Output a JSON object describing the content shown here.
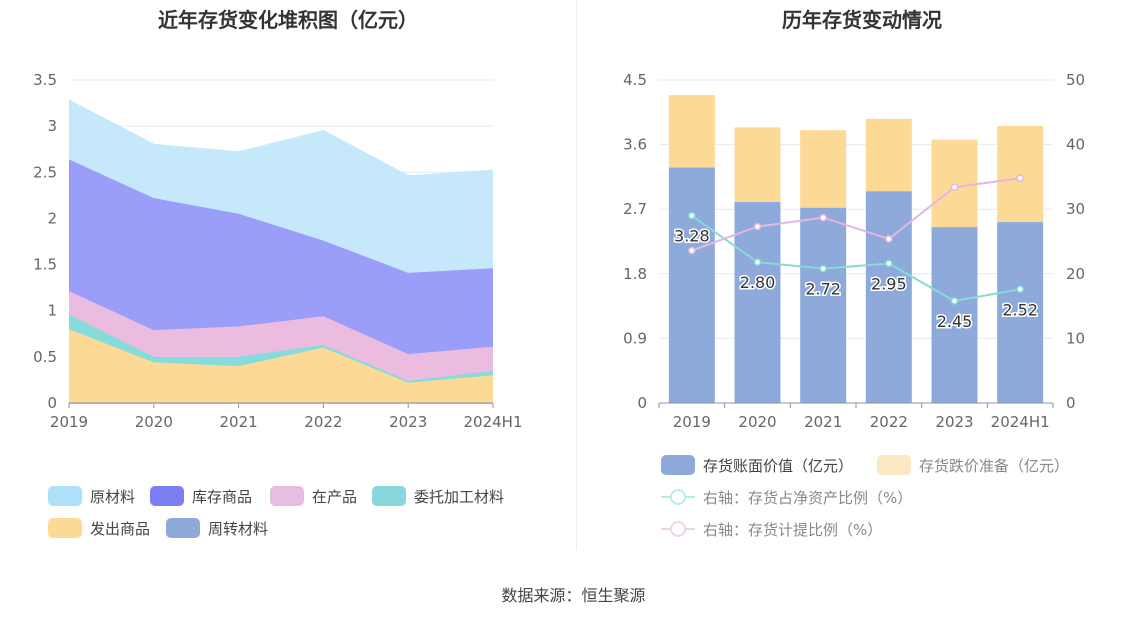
{
  "footer": {
    "source": "数据来源：恒生聚源"
  },
  "legend_left": [
    "原材料",
    "库存商品",
    "在产品",
    "委托加工材料",
    "发出商品",
    "周转材料"
  ],
  "legend_right": {
    "bar1": "存货账面价值（亿元）",
    "bar2": "存货跌价准备（亿元）",
    "line1": "右轴：存货占净资产比例（%）",
    "line2": "右轴：存货计提比例（%）"
  },
  "chart_data": [
    {
      "type": "area",
      "title": "近年存货变化堆积图（亿元）",
      "stacked": true,
      "categories": [
        "2019",
        "2020",
        "2021",
        "2022",
        "2023",
        "2024H1"
      ],
      "y_ticks": [
        "0",
        "0.5",
        "1",
        "1.5",
        "2",
        "2.5",
        "3",
        "3.5"
      ],
      "ylim": [
        0,
        3.5
      ],
      "series": [
        {
          "name": "周转材料",
          "color": "#8eaadb",
          "values": [
            0,
            0,
            0,
            0,
            0,
            0
          ]
        },
        {
          "name": "发出商品",
          "color": "#fdd996",
          "values": [
            0.8,
            0.44,
            0.4,
            0.6,
            0.22,
            0.3
          ]
        },
        {
          "name": "委托加工材料",
          "color": "#86dbdb",
          "values": [
            0.16,
            0.06,
            0.1,
            0.03,
            0.02,
            0.05
          ]
        },
        {
          "name": "在产品",
          "color": "#ebbce0",
          "values": [
            0.25,
            0.29,
            0.33,
            0.31,
            0.29,
            0.26
          ]
        },
        {
          "name": "库存商品",
          "color": "#9b9ef8",
          "values": [
            1.43,
            1.43,
            1.22,
            0.82,
            0.88,
            0.85
          ]
        },
        {
          "name": "原材料",
          "color": "#c5e9fb",
          "values": [
            0.64,
            0.58,
            0.67,
            1.19,
            1.05,
            1.06
          ]
        }
      ]
    },
    {
      "type": "bar",
      "title": "历年存货变动情况",
      "stacked": true,
      "categories": [
        "2019",
        "2020",
        "2021",
        "2022",
        "2023",
        "2024H1"
      ],
      "y_left_ticks": [
        "0",
        "0.9",
        "1.8",
        "2.7",
        "3.6",
        "4.5"
      ],
      "y_right_ticks": [
        "0",
        "10",
        "20",
        "30",
        "40",
        "50"
      ],
      "ylim_left": [
        0,
        4.5
      ],
      "ylim_right": [
        0,
        50
      ],
      "series": [
        {
          "name": "存货账面价值（亿元）",
          "color": "#8eaadb",
          "axis": "left",
          "values": [
            3.28,
            2.8,
            2.72,
            2.95,
            2.45,
            2.52
          ],
          "labels": [
            "3.28",
            "2.80",
            "2.72",
            "2.95",
            "2.45",
            "2.52"
          ]
        },
        {
          "name": "存货跌价准备（亿元）",
          "color": "#fdd996",
          "axis": "left",
          "values": [
            1.01,
            1.04,
            1.08,
            1.01,
            1.22,
            1.34
          ]
        },
        {
          "name": "右轴：存货占净资产比例（%）",
          "color": "#86dbd5",
          "axis": "right",
          "type": "line",
          "values": [
            29.0,
            21.8,
            20.8,
            21.6,
            15.8,
            17.6
          ]
        },
        {
          "name": "右轴：存货计提比例（%）",
          "color": "#e4b7e0",
          "axis": "right",
          "type": "line",
          "values": [
            23.6,
            27.3,
            28.7,
            25.4,
            33.4,
            34.8
          ]
        }
      ]
    }
  ]
}
